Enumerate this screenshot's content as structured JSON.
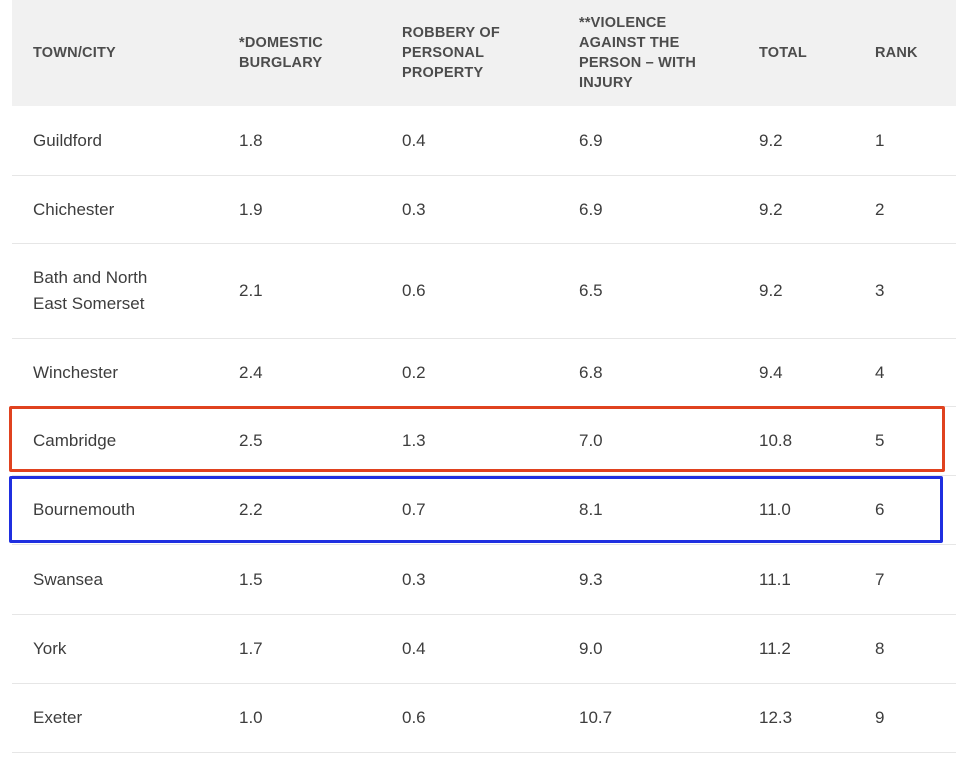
{
  "table": {
    "headers": [
      "TOWN/CITY",
      "*DOMESTIC BURGLARY",
      "ROBBERY OF PERSONAL PROPERTY",
      "**VIOLENCE AGAINST THE PERSON – WITH INJURY",
      "TOTAL",
      "RANK"
    ],
    "rows": [
      {
        "town": "Guildford",
        "burglary": "1.8",
        "robbery": "0.4",
        "violence": "6.9",
        "total": "9.2",
        "rank": "1"
      },
      {
        "town": "Chichester",
        "burglary": "1.9",
        "robbery": "0.3",
        "violence": "6.9",
        "total": "9.2",
        "rank": "2"
      },
      {
        "town": "Bath and North East Somerset",
        "burglary": "2.1",
        "robbery": "0.6",
        "violence": "6.5",
        "total": "9.2",
        "rank": "3"
      },
      {
        "town": "Winchester",
        "burglary": "2.4",
        "robbery": "0.2",
        "violence": "6.8",
        "total": "9.4",
        "rank": "4"
      },
      {
        "town": "Cambridge",
        "burglary": "2.5",
        "robbery": "1.3",
        "violence": "7.0",
        "total": "10.8",
        "rank": "5"
      },
      {
        "town": "Bournemouth",
        "burglary": "2.2",
        "robbery": "0.7",
        "violence": "8.1",
        "total": "11.0",
        "rank": "6"
      },
      {
        "town": "Swansea",
        "burglary": "1.5",
        "robbery": "0.3",
        "violence": "9.3",
        "total": "11.1",
        "rank": "7"
      },
      {
        "town": "York",
        "burglary": "1.7",
        "robbery": "0.4",
        "violence": "9.0",
        "total": "11.2",
        "rank": "8"
      },
      {
        "town": "Exeter",
        "burglary": "1.0",
        "robbery": "0.6",
        "violence": "10.7",
        "total": "12.3",
        "rank": "9"
      }
    ]
  },
  "highlights": {
    "cambridge_outline_color": "#e0421f",
    "bournemouth_outline_color": "#1f2fe0"
  }
}
